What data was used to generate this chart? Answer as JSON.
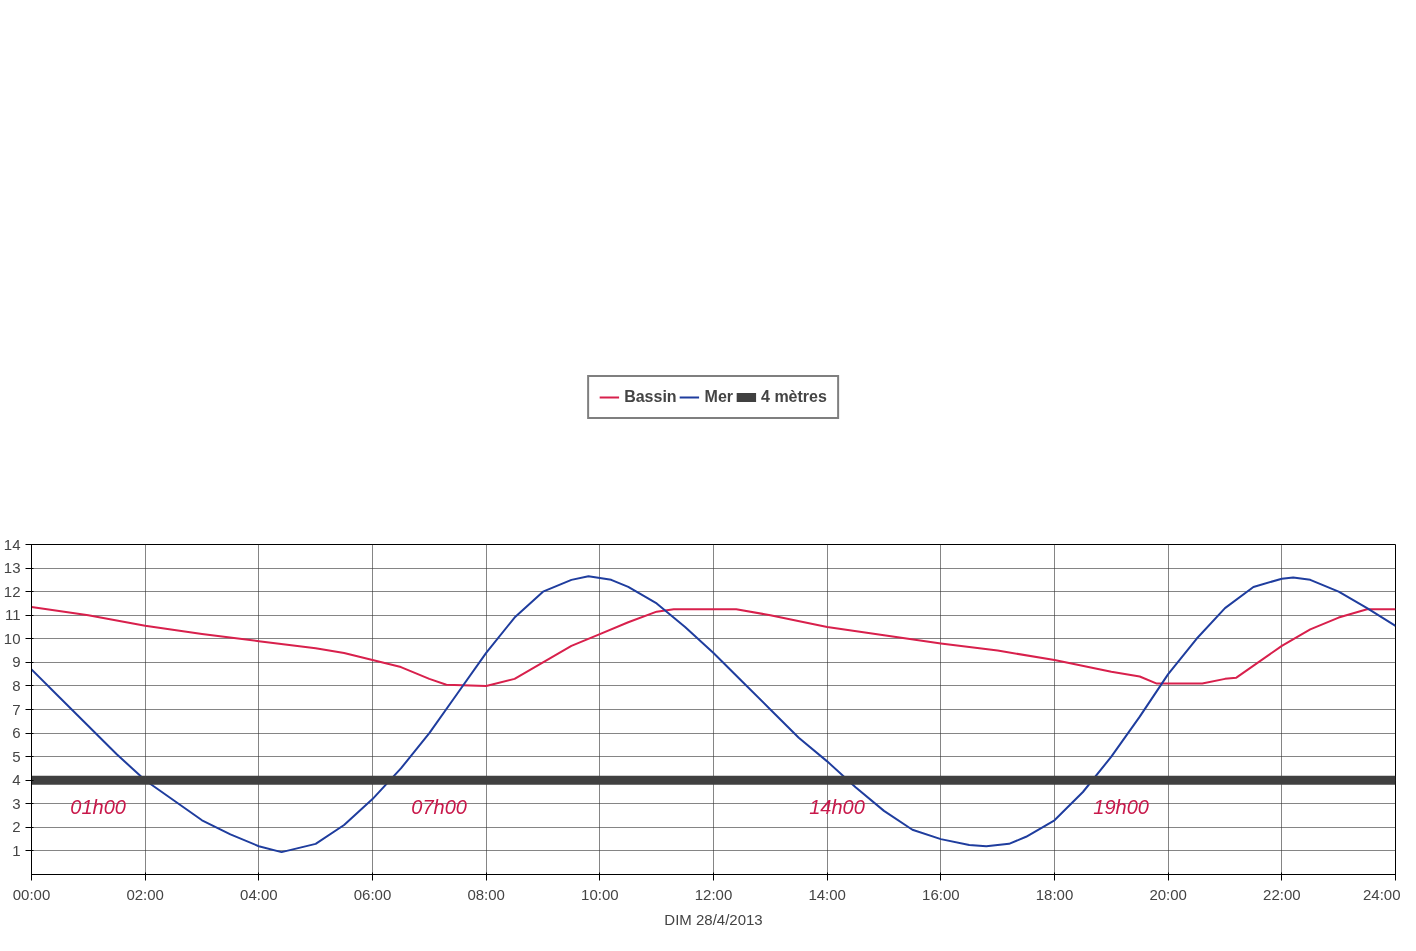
{
  "chart_data": {
    "type": "line",
    "xlabel": "DIM 28/4/2013",
    "xlim": [
      0,
      24
    ],
    "ylim": [
      0,
      14
    ],
    "xticks": [
      {
        "value": 0,
        "label": "00:00"
      },
      {
        "value": 2,
        "label": "02:00"
      },
      {
        "value": 4,
        "label": "04:00"
      },
      {
        "value": 6,
        "label": "06:00"
      },
      {
        "value": 8,
        "label": "08:00"
      },
      {
        "value": 10,
        "label": "10:00"
      },
      {
        "value": 12,
        "label": "12:00"
      },
      {
        "value": 14,
        "label": "14:00"
      },
      {
        "value": 16,
        "label": "16:00"
      },
      {
        "value": 18,
        "label": "18:00"
      },
      {
        "value": 20,
        "label": "20:00"
      },
      {
        "value": 22,
        "label": "22:00"
      },
      {
        "value": 24,
        "label": "24:00"
      }
    ],
    "yticks": [
      1,
      2,
      3,
      4,
      5,
      6,
      7,
      8,
      9,
      10,
      11,
      12,
      13,
      14
    ],
    "grid": true,
    "legend": "top",
    "marker": "none",
    "line_style": "solid",
    "series": [
      {
        "name": "Bassin",
        "color": "#d8204c",
        "x": [
          0,
          1,
          2,
          3,
          4,
          5,
          5.5,
          6,
          6.5,
          7,
          7.3,
          8,
          8.5,
          9,
          9.5,
          10,
          10.5,
          11,
          11.3,
          12.4,
          13,
          14,
          15,
          16,
          17,
          18,
          19,
          19.5,
          19.8,
          20.6,
          21,
          21.2,
          22,
          22.5,
          23,
          23.5,
          24
        ],
        "values": [
          11.35,
          11.0,
          10.55,
          10.2,
          9.9,
          9.6,
          9.4,
          9.1,
          8.8,
          8.3,
          8.05,
          8.0,
          8.3,
          9.0,
          9.7,
          10.2,
          10.7,
          11.15,
          11.25,
          11.25,
          11.0,
          10.5,
          10.15,
          9.8,
          9.5,
          9.1,
          8.6,
          8.4,
          8.1,
          8.1,
          8.3,
          8.35,
          9.7,
          10.4,
          10.9,
          11.25,
          11.25
        ]
      },
      {
        "name": "Mer",
        "color": "#1f3d9e",
        "x": [
          0,
          0.5,
          1,
          1.5,
          2,
          3,
          3.5,
          4,
          4.4,
          5,
          5.5,
          6,
          6.5,
          7,
          7.5,
          8,
          8.5,
          9,
          9.5,
          9.8,
          10.2,
          10.5,
          11,
          11.5,
          12,
          12.5,
          13,
          13.5,
          14,
          14.5,
          15,
          15.5,
          16,
          16.5,
          16.8,
          17.2,
          17.5,
          18,
          18.5,
          19,
          19.5,
          20,
          20.5,
          21,
          21.5,
          22,
          22.2,
          22.5,
          23,
          23.5,
          24
        ],
        "values": [
          8.7,
          7.5,
          6.3,
          5.1,
          4.0,
          2.3,
          1.7,
          1.2,
          0.95,
          1.3,
          2.1,
          3.2,
          4.5,
          6.0,
          7.7,
          9.4,
          10.9,
          12.0,
          12.5,
          12.65,
          12.5,
          12.2,
          11.5,
          10.5,
          9.4,
          8.2,
          7.0,
          5.8,
          4.8,
          3.7,
          2.7,
          1.9,
          1.5,
          1.25,
          1.2,
          1.3,
          1.6,
          2.3,
          3.5,
          5.0,
          6.7,
          8.5,
          10.0,
          11.3,
          12.2,
          12.55,
          12.6,
          12.5,
          12.0,
          11.3,
          10.55
        ]
      }
    ],
    "ref_lines": [
      {
        "axis": "y",
        "value": 4,
        "label": "4 mètres",
        "color": "#404040"
      }
    ],
    "annotations": [
      {
        "text": "01h00",
        "x": 1,
        "y": 4
      },
      {
        "text": "07h00",
        "x": 7,
        "y": 4
      },
      {
        "text": "14h00",
        "x": 14,
        "y": 4
      },
      {
        "text": "19h00",
        "x": 19,
        "y": 4
      }
    ]
  }
}
